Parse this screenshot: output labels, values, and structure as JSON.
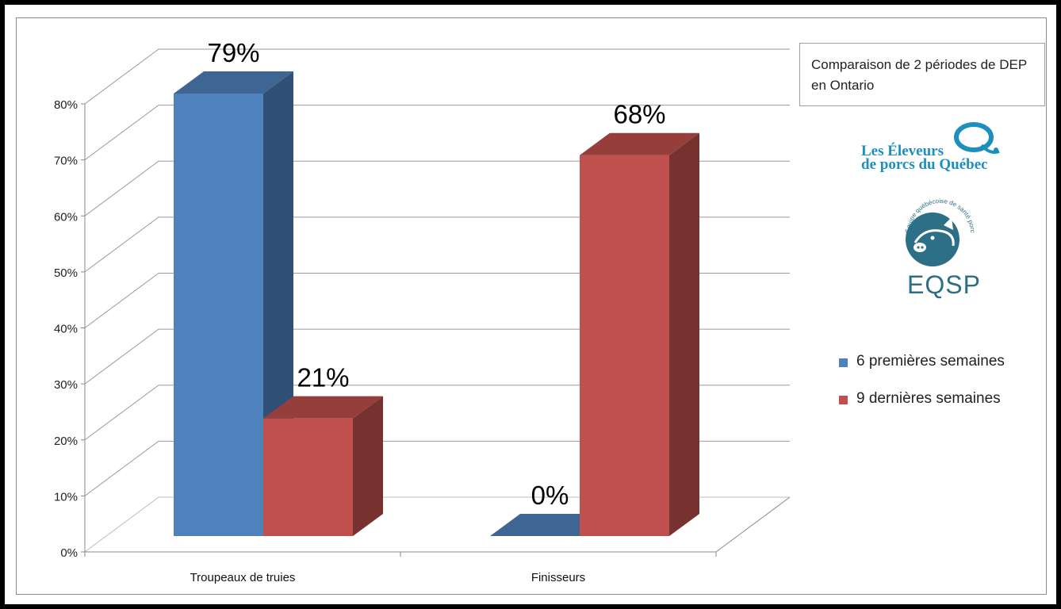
{
  "chart_data": {
    "type": "bar",
    "title": "Comparaison de 2 périodes de DEP en Ontario",
    "categories": [
      "Troupeaux de truies",
      "Finisseurs"
    ],
    "series": [
      {
        "name": "6 premières semaines",
        "values": [
          79,
          0
        ],
        "labels": [
          "79%",
          "0%"
        ],
        "color": "#4f81bd"
      },
      {
        "name": "9 dernières semaines",
        "values": [
          21,
          68
        ],
        "labels": [
          "21%",
          "68%"
        ],
        "color": "#c0504d"
      }
    ],
    "ylim": [
      0,
      80
    ],
    "yticks": [
      "0%",
      "10%",
      "20%",
      "30%",
      "40%",
      "50%",
      "60%",
      "70%",
      "80%"
    ],
    "grid": true,
    "legend_position": "right",
    "style": "3d-column"
  },
  "logos": {
    "eleveurs": {
      "line1": "Les Éleveurs",
      "line2": "de porcs du Québec",
      "color": "#1d8fbd"
    },
    "eqsp": {
      "text": "EQSP",
      "ring_text": "Équipe québécoise de santé porcine",
      "color": "#2c6f86"
    }
  }
}
